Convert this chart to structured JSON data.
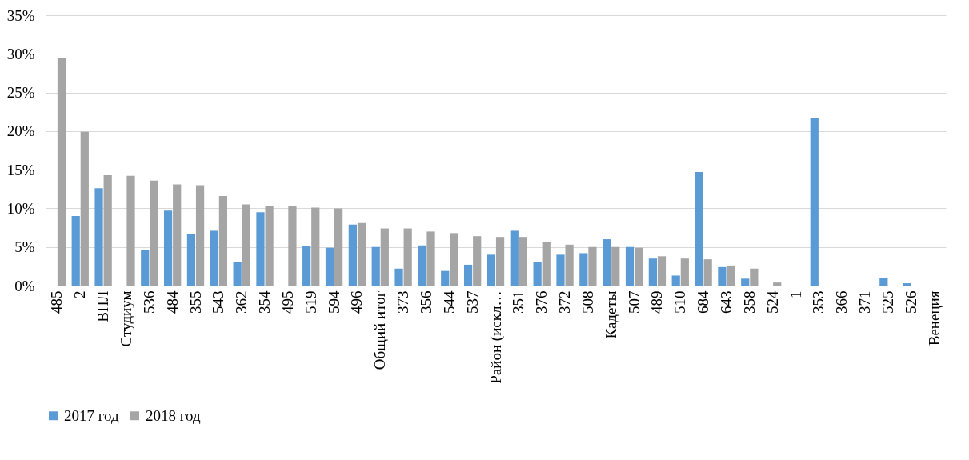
{
  "chart_data": {
    "type": "bar",
    "categories": [
      "485",
      "2",
      "ВПЛ",
      "Студиум",
      "536",
      "484",
      "355",
      "543",
      "362",
      "354",
      "495",
      "519",
      "594",
      "496",
      "Общий итог",
      "373",
      "356",
      "544",
      "537",
      "Район (искл…",
      "351",
      "376",
      "372",
      "508",
      "Кадеты",
      "507",
      "489",
      "510",
      "684",
      "643",
      "358",
      "524",
      "1",
      "353",
      "366",
      "371",
      "525",
      "526",
      "Венеция"
    ],
    "series": [
      {
        "name": "2017 год",
        "color": "#5b9bd5",
        "values": [
          null,
          9.0,
          12.6,
          null,
          4.6,
          9.7,
          6.7,
          7.1,
          3.1,
          9.5,
          null,
          5.1,
          4.9,
          7.9,
          5.0,
          2.2,
          5.2,
          1.9,
          2.7,
          4.0,
          7.1,
          3.1,
          4.0,
          4.2,
          6.0,
          5.0,
          3.5,
          1.3,
          14.7,
          2.4,
          0.9,
          null,
          null,
          21.7,
          null,
          null,
          1.0,
          0.3,
          null
        ]
      },
      {
        "name": "2018 год",
        "color": "#a5a5a5",
        "values": [
          29.4,
          19.9,
          14.3,
          14.2,
          13.6,
          13.1,
          13.0,
          11.6,
          10.5,
          10.3,
          10.3,
          10.1,
          10.0,
          8.1,
          7.4,
          7.4,
          7.0,
          6.8,
          6.4,
          6.3,
          6.3,
          5.6,
          5.3,
          5.0,
          5.0,
          4.9,
          3.8,
          3.5,
          3.4,
          2.6,
          2.2,
          0.4,
          null,
          null,
          null,
          null,
          null,
          null,
          null
        ]
      }
    ],
    "ylim": [
      0,
      35
    ],
    "yticks": [
      {
        "value": 0,
        "label": "0%"
      },
      {
        "value": 5,
        "label": "5%"
      },
      {
        "value": 10,
        "label": "10%"
      },
      {
        "value": 15,
        "label": "15%"
      },
      {
        "value": 20,
        "label": "20%"
      },
      {
        "value": 25,
        "label": "25%"
      },
      {
        "value": 30,
        "label": "30%"
      },
      {
        "value": 35,
        "label": "35%"
      }
    ],
    "grid": "y",
    "legend": "bottom"
  }
}
